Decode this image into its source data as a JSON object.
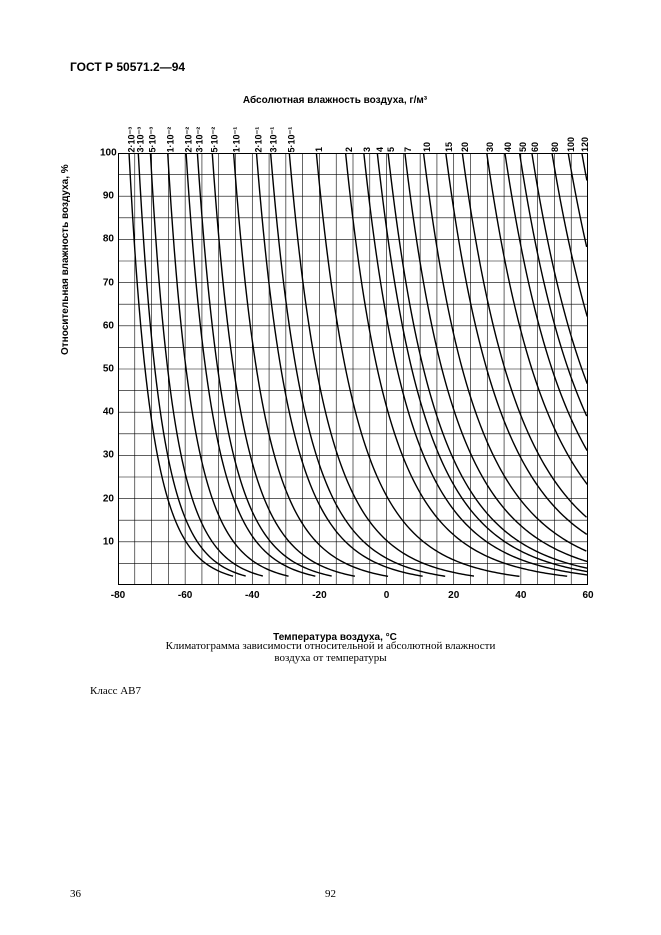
{
  "header": "ГОСТ Р 50571.2—94",
  "chart": {
    "type": "line",
    "top_axis_title": "Абсолютная влажность воздуха, г/м³",
    "y_axis_title": "Относительная влажность воздуха, %",
    "x_axis_title": "Температура воздуха, °C",
    "x_min": -80,
    "x_max": 60,
    "y_min": 0,
    "y_max": 100,
    "background_color": "#ffffff",
    "grid_color": "#000000",
    "line_color": "#000000",
    "border_width": 2,
    "grid_width": 0.6,
    "curve_width": 1.4,
    "font_family": "Arial",
    "title_fontsize": 10,
    "tick_fontsize": 10,
    "x_ticks": [
      -80,
      -60,
      -40,
      -20,
      0,
      20,
      40,
      60
    ],
    "y_ticks": [
      10,
      20,
      30,
      40,
      50,
      60,
      70,
      80,
      90,
      100
    ],
    "x_minor_step": 5,
    "y_minor_step": 5,
    "top_labels": [
      {
        "label": "2·10⁻³",
        "value": 0.002
      },
      {
        "label": "3·10⁻³",
        "value": 0.003
      },
      {
        "label": "5·10⁻³",
        "value": 0.005
      },
      {
        "label": "1·10⁻²",
        "value": 0.01
      },
      {
        "label": "2·10⁻²",
        "value": 0.02
      },
      {
        "label": "3·10⁻²",
        "value": 0.03
      },
      {
        "label": "5·10⁻²",
        "value": 0.05
      },
      {
        "label": "1·10⁻¹",
        "value": 0.1
      },
      {
        "label": "2·10⁻¹",
        "value": 0.2
      },
      {
        "label": "3·10⁻¹",
        "value": 0.3
      },
      {
        "label": "5·10⁻¹",
        "value": 0.5
      },
      {
        "label": "1",
        "value": 1
      },
      {
        "label": "2",
        "value": 2
      },
      {
        "label": "3",
        "value": 3
      },
      {
        "label": "4",
        "value": 4
      },
      {
        "label": "5",
        "value": 5
      },
      {
        "label": "7",
        "value": 7
      },
      {
        "label": "10",
        "value": 10
      },
      {
        "label": "15",
        "value": 15
      },
      {
        "label": "20",
        "value": 20
      },
      {
        "label": "30",
        "value": 30
      },
      {
        "label": "40",
        "value": 40
      },
      {
        "label": "50",
        "value": 50
      },
      {
        "label": "60",
        "value": 60
      },
      {
        "label": "80",
        "value": 80
      },
      {
        "label": "100",
        "value": 100
      },
      {
        "label": "120",
        "value": 120
      }
    ],
    "abs_humidity_values": [
      0.002,
      0.003,
      0.005,
      0.01,
      0.02,
      0.03,
      0.05,
      0.1,
      0.2,
      0.3,
      0.5,
      1,
      2,
      3,
      4,
      5,
      7,
      10,
      15,
      20,
      30,
      40,
      50,
      60,
      80,
      100,
      120
    ]
  },
  "caption_line1": "Климатограмма зависимости относительной и абсолютной влажности",
  "caption_line2": "воздуха от температуры",
  "class_label": "Класс АВ7",
  "page_num_left": "36",
  "page_num_center": "92"
}
